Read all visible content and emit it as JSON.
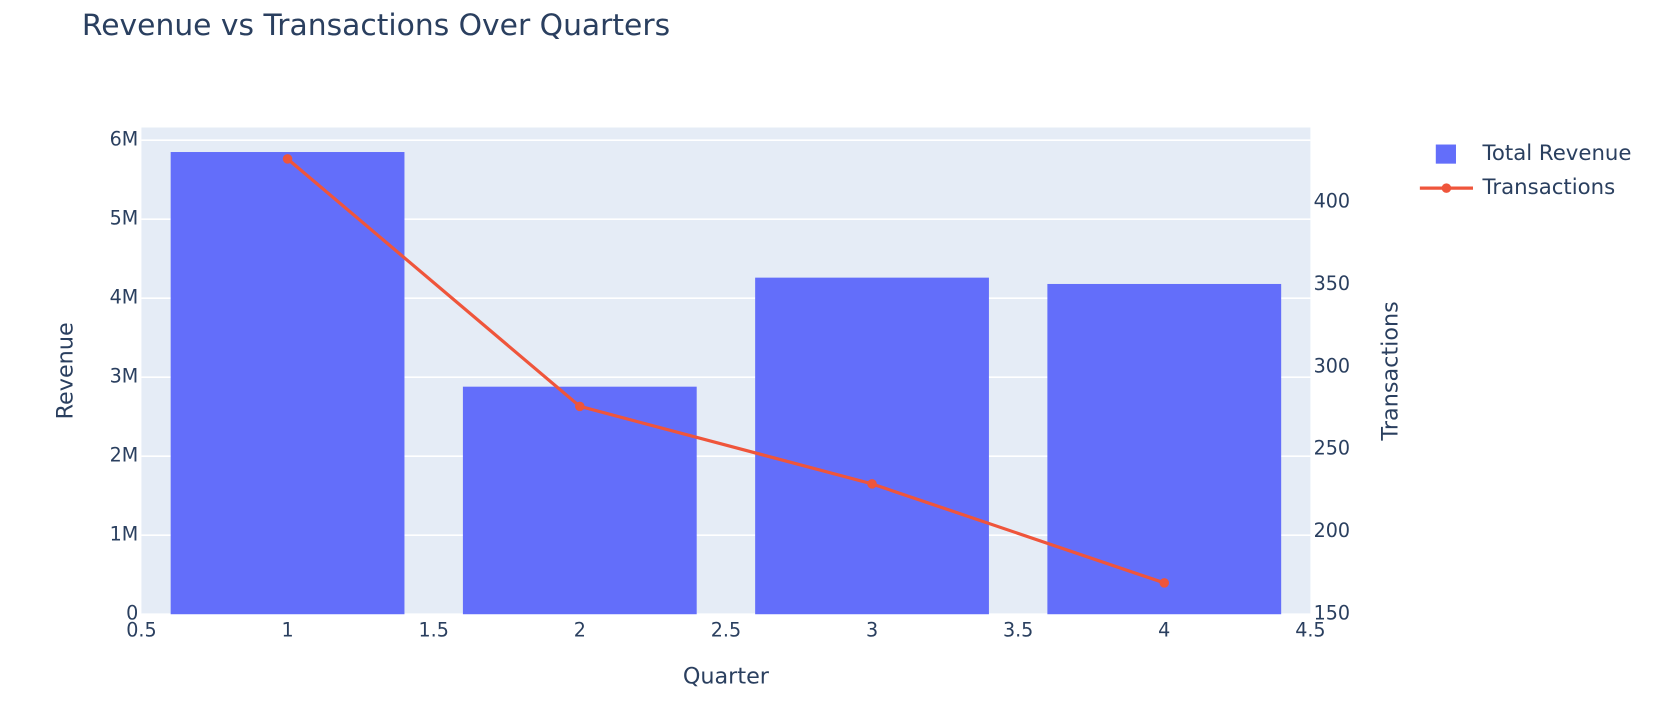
{
  "chart_data": {
    "type": "bar",
    "title": "Revenue vs Transactions Over Quarters",
    "x_label": "Quarter",
    "y_label": "Revenue",
    "y2_label": "Transactions",
    "x": [
      1,
      2,
      3,
      4
    ],
    "series": [
      {
        "name": "Total Revenue",
        "type": "bar",
        "color": "#636efa",
        "values": [
          5850000,
          2880000,
          4260000,
          4180000
        ]
      },
      {
        "name": "Transactions",
        "type": "line",
        "color": "#ef553b",
        "axis": "y2",
        "values": [
          426,
          276,
          229,
          169
        ]
      }
    ],
    "xlim": [
      0.5,
      4.5
    ],
    "xticks": [
      0.5,
      1,
      1.5,
      2,
      2.5,
      3,
      3.5,
      4,
      4.5
    ],
    "ylim": [
      0,
      6160000
    ],
    "yticks": [
      0,
      {
        "value": 1000000,
        "label": "1M"
      },
      {
        "value": 2000000,
        "label": "2M"
      },
      {
        "value": 3000000,
        "label": "3M"
      },
      {
        "value": 4000000,
        "label": "4M"
      },
      {
        "value": 5000000,
        "label": "5M"
      },
      {
        "value": 6000000,
        "label": "6M"
      }
    ],
    "y2lim": [
      150,
      445
    ],
    "y2ticks": [
      150,
      200,
      250,
      300,
      350,
      400
    ],
    "bar_width": 0.8,
    "grid": true
  }
}
